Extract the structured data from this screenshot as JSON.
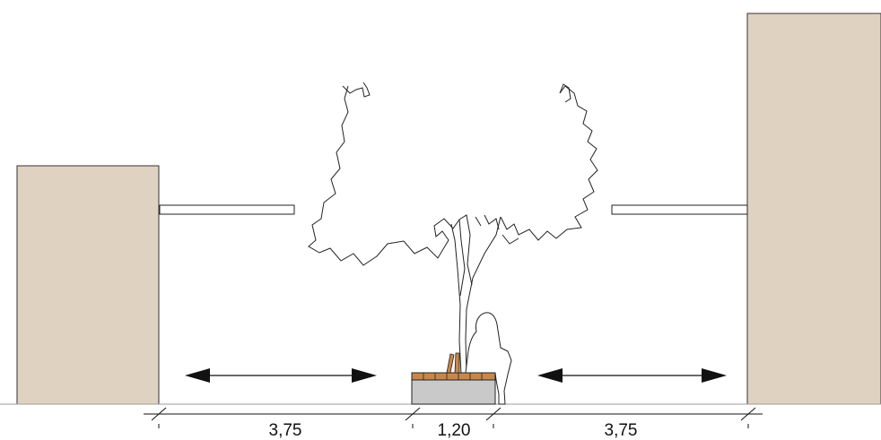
{
  "colors": {
    "building": "#e0d2c0",
    "line": "#111111",
    "planter": "#c9c9c9",
    "bench_wood": "#c8874a",
    "ground": "#9e9e9e"
  },
  "dimensions": {
    "left": "3,75",
    "center": "1,20",
    "right": "3,75"
  },
  "icons": [
    "tree-icon",
    "person-seated-icon",
    "double-arrow-icon"
  ]
}
